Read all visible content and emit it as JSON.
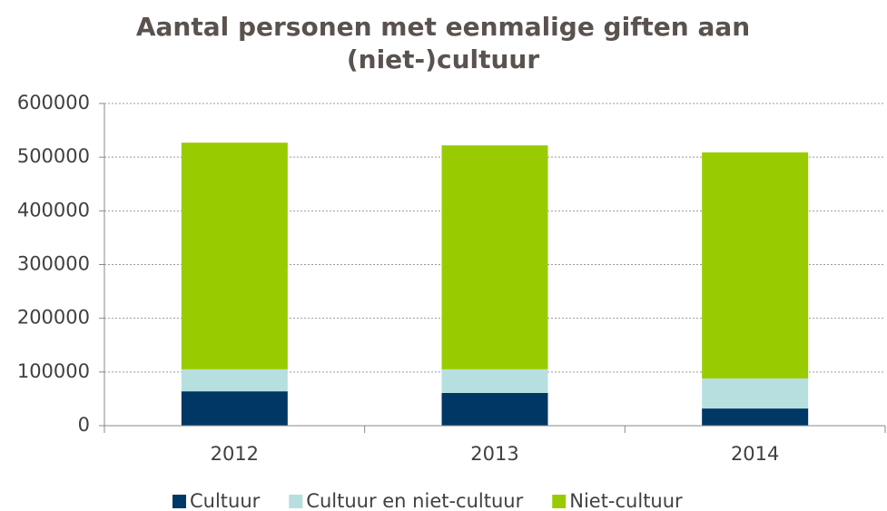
{
  "chart_data": {
    "type": "stacked_bar",
    "title": "Aantal personen met eenmalige giften aan (niet-)cultuur",
    "categories": [
      "2012",
      "2013",
      "2014"
    ],
    "series": [
      {
        "name": "Cultuur",
        "color": "#003865",
        "values": [
          64000,
          61000,
          32000
        ]
      },
      {
        "name": "Cultuur en niet-cultuur",
        "color": "#b7dfe0",
        "values": [
          41000,
          44000,
          56000
        ]
      },
      {
        "name": "Niet-cultuur",
        "color": "#99cc00",
        "values": [
          422000,
          417000,
          421000
        ]
      }
    ],
    "ylim": [
      0,
      600000
    ],
    "yticks": [
      0,
      100000,
      200000,
      300000,
      400000,
      500000,
      600000
    ],
    "grid": true,
    "legend": "bottom"
  }
}
